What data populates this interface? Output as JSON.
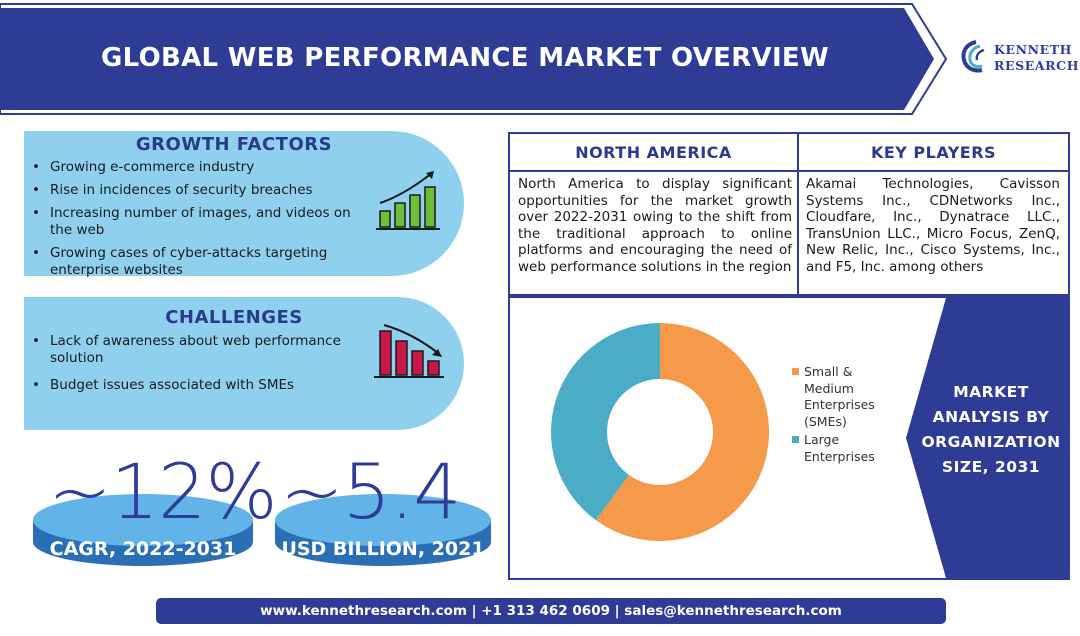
{
  "header": {
    "title": "GLOBAL WEB PERFORMANCE MARKET OVERVIEW",
    "logo_line1": "KENNETH",
    "logo_line2": "RESEARCH"
  },
  "growth": {
    "title": "GROWTH FACTORS",
    "items": [
      "Growing e-commerce industry",
      "Rise in incidences of security breaches",
      "Increasing number of images, and videos on the web",
      "Growing cases of cyber-attacks targeting enterprise websites"
    ]
  },
  "challenges": {
    "title": "CHALLENGES",
    "items": [
      "Lack of awareness about web performance solution",
      "Budget issues associated with SMEs"
    ]
  },
  "stats": {
    "cagr_value": "~12%",
    "cagr_label": "CAGR, 2022-2031",
    "market_value": "~5.4",
    "market_label": "USD BILLION, 2021"
  },
  "north_america": {
    "title": "NORTH AMERICA",
    "text": "North America to display significant opportunities for the market growth over 2022-2031 owing to the shift from the traditional approach to online platforms and encouraging the need of web performance solutions in the region"
  },
  "key_players": {
    "title": "KEY PLAYERS",
    "text": "Akamai Technologies, Cavisson Systems Inc., CDNetworks Inc., Cloudfare, Inc., Dynatrace LLC., TransUnion LLC., Micro Focus, ZenQ, New Relic, Inc., Cisco Systems, Inc., and F5, Inc. among others"
  },
  "market_analysis": {
    "title_line1": "MARKET",
    "title_line2": "ANALYSIS BY",
    "title_line3": "ORGANIZATION",
    "title_line4": "SIZE, 2031"
  },
  "chart_data": {
    "type": "pie",
    "donut": true,
    "series": [
      {
        "name": "Small & Medium Enterprises (SMEs)",
        "value": 60,
        "color": "#f5994a"
      },
      {
        "name": "Large Enterprises",
        "value": 40,
        "color": "#4bacc6"
      }
    ],
    "legend_lines": [
      [
        "Small &",
        "Medium",
        "Enterprises",
        "(SMEs)"
      ],
      [
        "Large",
        "Enterprises"
      ]
    ],
    "legend_position": "right"
  },
  "footer": {
    "text": "www.kennethresearch.com | +1 313 462 0609 | sales@kennethresearch.com"
  },
  "colors": {
    "navy": "#2e3c96",
    "light_blue": "#8fd0ee",
    "green": "#6cbf3a",
    "crimson": "#c9184a"
  },
  "icons": [
    "growth-chart-icon",
    "decline-chart-icon",
    "kenneth-research-logo-icon"
  ]
}
